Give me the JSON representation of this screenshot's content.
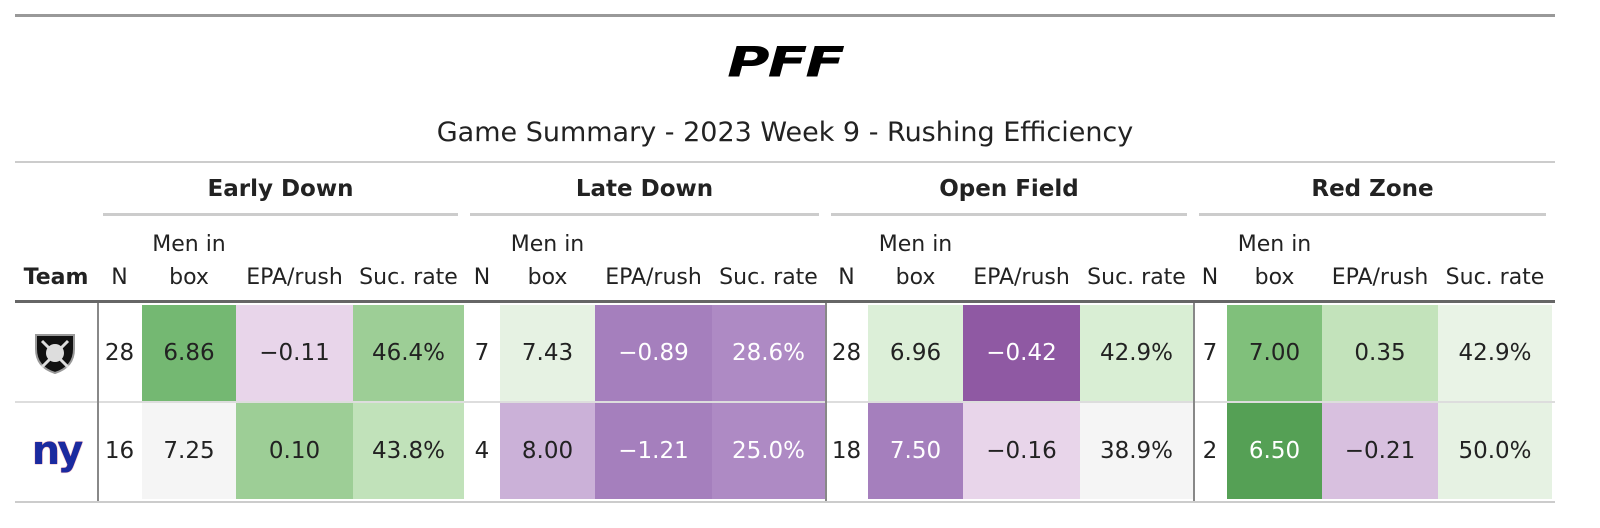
{
  "logo": "PFF",
  "title": "Game Summary - 2023 Week 9 - Rushing Efficiency",
  "table": {
    "groups": [
      "Early Down",
      "Late Down",
      "Open Field",
      "Red Zone"
    ],
    "team_header": "Team",
    "columns": [
      "N",
      "Men in box",
      "EPA/rush",
      "Suc. rate"
    ],
    "rows": [
      {
        "cells": [
          "28",
          "6.86",
          "−0.11",
          "46.4%",
          "7",
          "7.43",
          "−0.89",
          "28.6%",
          "28",
          "6.96",
          "−0.42",
          "42.9%",
          "7",
          "7.00",
          "0.35",
          "42.9%"
        ],
        "colors": [
          "#ffffff",
          "#74b872",
          "#e8d5ea",
          "#9dce96",
          "#ffffff",
          "#e6f2e3",
          "#a57fbd",
          "#ae8ac4",
          "#ffffff",
          "#dcefd8",
          "#8f59a3",
          "#d9eed4",
          "#ffffff",
          "#80c07b",
          "#c3e3bb",
          "#e9f3e6"
        ]
      },
      {
        "logo": "ny",
        "cells": [
          "16",
          "7.25",
          "0.10",
          "43.8%",
          "4",
          "8.00",
          "−1.21",
          "25.0%",
          "18",
          "7.50",
          "−0.16",
          "38.9%",
          "2",
          "6.50",
          "−0.21",
          "50.0%"
        ],
        "colors": [
          "#ffffff",
          "#f5f5f5",
          "#9dce96",
          "#c1e2ba",
          "#ffffff",
          "#cbb1d8",
          "#a57fbd",
          "#ae8ac4",
          "#ffffff",
          "#a57fbd",
          "#e8d5ea",
          "#f5f5f5",
          "#ffffff",
          "#55a055",
          "#d8c0df",
          "#e6f2e3"
        ]
      }
    ]
  }
}
